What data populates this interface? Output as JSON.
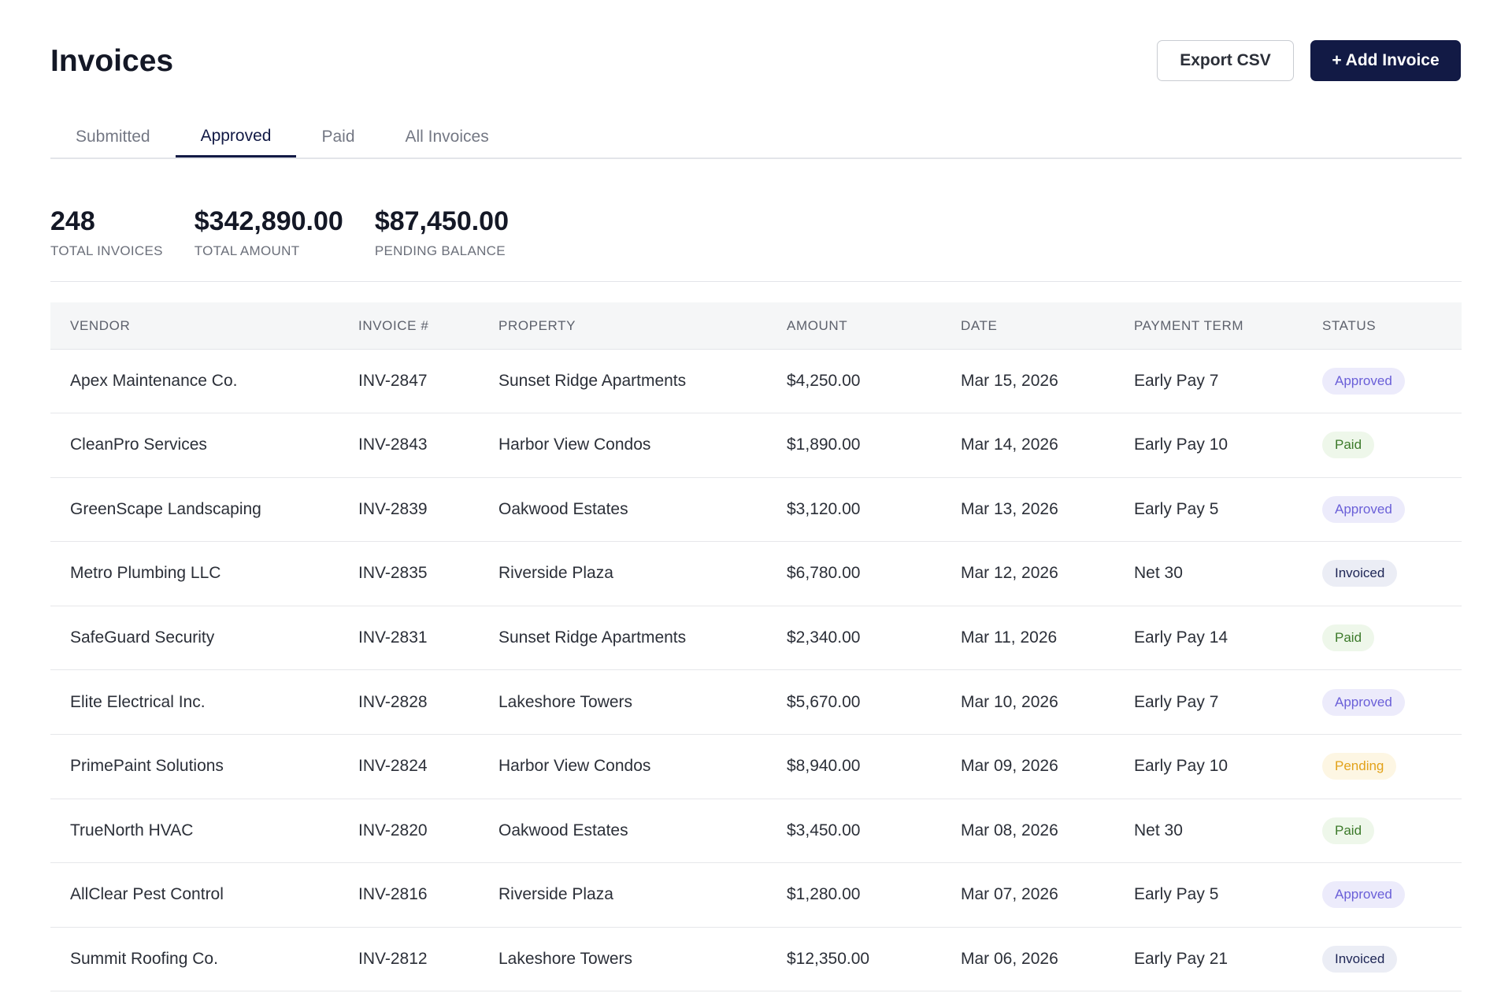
{
  "header": {
    "title": "Invoices",
    "actions": [
      "Export CSV",
      "+ Add Invoice"
    ]
  },
  "tabs": {
    "items": [
      "Submitted",
      "Approved",
      "Paid",
      "All Invoices"
    ],
    "active": 1
  },
  "stats": [
    {
      "value": "248",
      "label": "TOTAL INVOICES"
    },
    {
      "value": "$342,890.00",
      "label": "TOTAL AMOUNT"
    },
    {
      "value": "$87,450.00",
      "label": "PENDING BALANCE"
    }
  ],
  "table": {
    "columns": [
      "VENDOR",
      "INVOICE #",
      "PROPERTY",
      "AMOUNT",
      "DATE",
      "PAYMENT TERM",
      "STATUS"
    ],
    "rows": [
      [
        "Apex Maintenance Co.",
        "INV-2847",
        "Sunset Ridge Apartments",
        "$4,250.00",
        "Mar 15, 2026",
        "Early Pay 7",
        "Approved"
      ],
      [
        "CleanPro Services",
        "INV-2843",
        "Harbor View Condos",
        "$1,890.00",
        "Mar 14, 2026",
        "Early Pay 10",
        "Paid"
      ],
      [
        "GreenScape Landscaping",
        "INV-2839",
        "Oakwood Estates",
        "$3,120.00",
        "Mar 13, 2026",
        "Early Pay 5",
        "Approved"
      ],
      [
        "Metro Plumbing LLC",
        "INV-2835",
        "Riverside Plaza",
        "$6,780.00",
        "Mar 12, 2026",
        "Net 30",
        "Invoiced"
      ],
      [
        "SafeGuard Security",
        "INV-2831",
        "Sunset Ridge Apartments",
        "$2,340.00",
        "Mar 11, 2026",
        "Early Pay 14",
        "Paid"
      ],
      [
        "Elite Electrical Inc.",
        "INV-2828",
        "Lakeshore Towers",
        "$5,670.00",
        "Mar 10, 2026",
        "Early Pay 7",
        "Approved"
      ],
      [
        "PrimePaint Solutions",
        "INV-2824",
        "Harbor View Condos",
        "$8,940.00",
        "Mar 09, 2026",
        "Early Pay 10",
        "Pending"
      ],
      [
        "TrueNorth HVAC",
        "INV-2820",
        "Oakwood Estates",
        "$3,450.00",
        "Mar 08, 2026",
        "Net 30",
        "Paid"
      ],
      [
        "AllClear Pest Control",
        "INV-2816",
        "Riverside Plaza",
        "$1,280.00",
        "Mar 07, 2026",
        "Early Pay 5",
        "Approved"
      ],
      [
        "Summit Roofing Co.",
        "INV-2812",
        "Lakeshore Towers",
        "$12,350.00",
        "Mar 06, 2026",
        "Early Pay 21",
        "Invoiced"
      ]
    ]
  }
}
